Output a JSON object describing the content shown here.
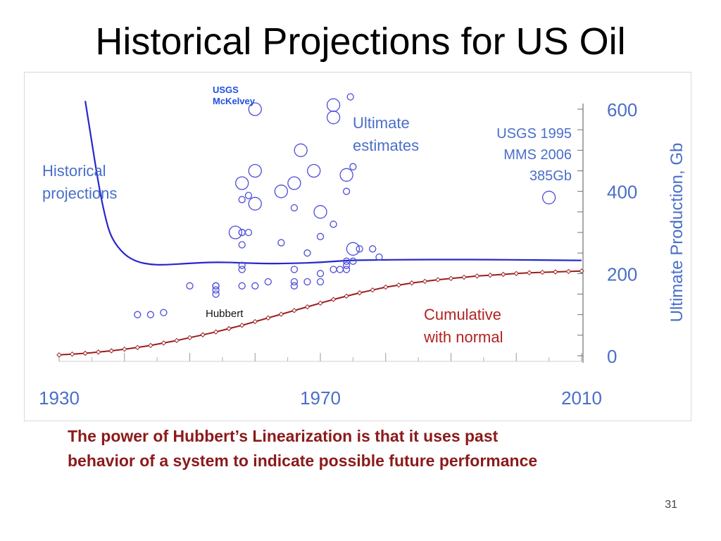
{
  "slide": {
    "title": "Historical Projections for US Oil",
    "caption_line1": "The power of Hubbert’s Linearization is that it uses past",
    "caption_line2": "behavior of a system to indicate possible future performance",
    "page_number": "31"
  },
  "colors": {
    "blue": "#2727cc",
    "axis_blue": "#4a6fc9",
    "red": "#9b1c1c",
    "caption_red": "#8b1a1a"
  },
  "chart_data": {
    "type": "scatter",
    "xlabel": "",
    "ylabel": "Ultimate Production, Gb",
    "xlim": [
      1930,
      2010
    ],
    "ylim": [
      0,
      600
    ],
    "x_ticks": [
      "1930",
      "1970",
      "2010"
    ],
    "y_ticks": [
      "0",
      "200",
      "400",
      "600"
    ],
    "annotations": {
      "historical": "Historical\nprojections",
      "ultimate": "Ultimate\nestimates",
      "usgs_mms": "USGS 1995\nMMS 2006\n385Gb",
      "cumulative": "Cumulative\nwith normal",
      "hubbert": "Hubbert",
      "mckelvey": "USGS\nMcKelvey"
    },
    "series": [
      {
        "name": "Ultimate estimates",
        "points": [
          [
            1974.6,
            630,
            "s"
          ],
          [
            1942,
            100,
            "s"
          ],
          [
            1944,
            100,
            "s"
          ],
          [
            1946,
            105,
            "s"
          ],
          [
            1950,
            170,
            "s"
          ],
          [
            1960,
            170,
            "s"
          ],
          [
            1966,
            170,
            "s"
          ],
          [
            1968,
            180,
            "s"
          ],
          [
            1974,
            220,
            "s"
          ],
          [
            1954,
            170,
            "s"
          ],
          [
            1954,
            160,
            "s"
          ],
          [
            1954,
            150,
            "s"
          ],
          [
            1958,
            170,
            "s"
          ],
          [
            1958,
            210,
            "s"
          ],
          [
            1958,
            270,
            "s"
          ],
          [
            1958,
            300,
            "s"
          ],
          [
            1958,
            380,
            "s"
          ],
          [
            1959,
            390,
            "s"
          ],
          [
            1964,
            275,
            "s"
          ],
          [
            1966,
            210,
            "s"
          ],
          [
            1968,
            250,
            "s"
          ],
          [
            1970,
            200,
            "s"
          ],
          [
            1970,
            290,
            "s"
          ],
          [
            1972,
            210,
            "s"
          ],
          [
            1972,
            320,
            "s"
          ],
          [
            1974,
            210,
            "s"
          ],
          [
            1974,
            230,
            "s"
          ],
          [
            1974,
            400,
            "s"
          ],
          [
            1976,
            260,
            "s"
          ],
          [
            1978,
            260,
            "s"
          ],
          [
            1979,
            240,
            "s"
          ],
          [
            1966,
            180,
            "s"
          ],
          [
            1970,
            180,
            "s"
          ],
          [
            1958,
            220,
            "s"
          ],
          [
            1962,
            180,
            "s"
          ],
          [
            1954,
            170,
            "s"
          ],
          [
            1959,
            300,
            "s"
          ],
          [
            1958,
            300,
            "s"
          ],
          [
            1966,
            360,
            "s"
          ],
          [
            1973,
            210,
            "s"
          ],
          [
            1975,
            230,
            "s"
          ],
          [
            1975,
            460,
            "s"
          ],
          [
            1960,
            600,
            "l"
          ],
          [
            1972,
            580,
            "l"
          ],
          [
            1972,
            610,
            "l"
          ],
          [
            1967,
            500,
            "l"
          ],
          [
            1960,
            450,
            "l"
          ],
          [
            1958,
            420,
            "l"
          ],
          [
            1966,
            420,
            "l"
          ],
          [
            1964,
            400,
            "l"
          ],
          [
            1969,
            450,
            "l"
          ],
          [
            1974,
            440,
            "l"
          ],
          [
            1960,
            370,
            "l"
          ],
          [
            1970,
            350,
            "l"
          ],
          [
            1957,
            300,
            "l"
          ],
          [
            1975,
            260,
            "l"
          ],
          [
            2005,
            385,
            "l"
          ]
        ]
      },
      {
        "name": "Cumulative with normal",
        "points": [
          [
            1930,
            2
          ],
          [
            1932,
            4
          ],
          [
            1934,
            6
          ],
          [
            1936,
            9
          ],
          [
            1938,
            12
          ],
          [
            1940,
            16
          ],
          [
            1942,
            20
          ],
          [
            1944,
            25
          ],
          [
            1946,
            31
          ],
          [
            1948,
            37
          ],
          [
            1950,
            44
          ],
          [
            1952,
            51
          ],
          [
            1954,
            58
          ],
          [
            1956,
            66
          ],
          [
            1958,
            74
          ],
          [
            1960,
            83
          ],
          [
            1962,
            92
          ],
          [
            1964,
            101
          ],
          [
            1966,
            110
          ],
          [
            1968,
            119
          ],
          [
            1970,
            128
          ],
          [
            1972,
            137
          ],
          [
            1974,
            145
          ],
          [
            1976,
            153
          ],
          [
            1978,
            160
          ],
          [
            1980,
            167
          ],
          [
            1982,
            172
          ],
          [
            1984,
            177
          ],
          [
            1986,
            181
          ],
          [
            1988,
            185
          ],
          [
            1990,
            188
          ],
          [
            1992,
            191
          ],
          [
            1994,
            194
          ],
          [
            1996,
            196
          ],
          [
            1998,
            198
          ],
          [
            2000,
            200
          ],
          [
            2002,
            202
          ],
          [
            2004,
            203
          ],
          [
            2006,
            204
          ],
          [
            2008,
            205
          ],
          [
            2010,
            206
          ]
        ]
      },
      {
        "name": "Historical projections",
        "points": [
          [
            1934,
            620
          ],
          [
            1935,
            520
          ],
          [
            1936,
            420
          ],
          [
            1937,
            340
          ],
          [
            1938,
            285
          ],
          [
            1940,
            245
          ],
          [
            1942,
            228
          ],
          [
            1944,
            222
          ],
          [
            1946,
            221
          ],
          [
            1950,
            225
          ],
          [
            1954,
            228
          ],
          [
            1958,
            226
          ],
          [
            1962,
            224
          ],
          [
            1966,
            225
          ],
          [
            1970,
            227
          ],
          [
            1974,
            232
          ],
          [
            1978,
            233
          ],
          [
            1984,
            234
          ],
          [
            1990,
            234
          ],
          [
            1996,
            234
          ],
          [
            2002,
            233
          ],
          [
            2010,
            232
          ]
        ]
      }
    ]
  }
}
